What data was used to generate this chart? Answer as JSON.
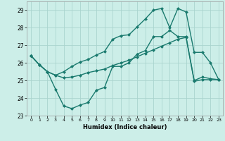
{
  "xlabel": "Humidex (Indice chaleur)",
  "bg_color": "#cceee8",
  "grid_color": "#aad4ce",
  "line_color": "#1a7a6e",
  "markersize": 2.5,
  "linewidth": 1.0,
  "xlim": [
    -0.5,
    23.5
  ],
  "ylim": [
    23,
    29.5
  ],
  "yticks": [
    23,
    24,
    25,
    26,
    27,
    28,
    29
  ],
  "xticks": [
    0,
    1,
    2,
    3,
    4,
    5,
    6,
    7,
    8,
    9,
    10,
    11,
    12,
    13,
    14,
    15,
    16,
    17,
    18,
    19,
    20,
    21,
    22,
    23
  ],
  "line1_x": [
    0,
    1,
    2,
    3,
    4,
    5,
    6,
    7,
    8,
    9,
    10,
    11,
    12,
    13,
    14,
    15,
    16,
    17,
    18,
    19,
    20,
    21,
    22,
    23
  ],
  "line1_y": [
    26.4,
    25.9,
    25.5,
    24.5,
    23.55,
    23.4,
    23.6,
    23.75,
    24.45,
    24.6,
    25.8,
    25.8,
    26.0,
    26.5,
    26.7,
    27.5,
    27.5,
    27.85,
    27.5,
    27.5,
    25.0,
    25.2,
    25.1,
    25.05
  ],
  "line2_x": [
    0,
    1,
    2,
    3,
    4,
    5,
    6,
    7,
    8,
    9,
    10,
    11,
    12,
    13,
    14,
    15,
    16,
    17,
    18,
    19,
    20,
    21,
    22,
    23
  ],
  "line2_y": [
    26.4,
    25.9,
    25.5,
    25.3,
    25.15,
    25.2,
    25.3,
    25.45,
    25.55,
    25.65,
    25.85,
    26.0,
    26.15,
    26.35,
    26.55,
    26.75,
    26.95,
    27.15,
    27.35,
    27.45,
    24.95,
    25.05,
    25.05,
    25.05
  ],
  "line3_x": [
    0,
    1,
    2,
    3,
    4,
    5,
    6,
    7,
    8,
    9,
    10,
    11,
    12,
    13,
    14,
    15,
    16,
    17,
    18,
    19,
    20,
    21,
    22,
    23
  ],
  "line3_y": [
    26.4,
    25.9,
    25.5,
    25.3,
    25.5,
    25.8,
    26.05,
    26.2,
    26.45,
    26.65,
    27.35,
    27.55,
    27.6,
    28.05,
    28.5,
    29.0,
    29.1,
    28.0,
    29.1,
    28.9,
    26.6,
    26.6,
    26.0,
    25.05
  ]
}
